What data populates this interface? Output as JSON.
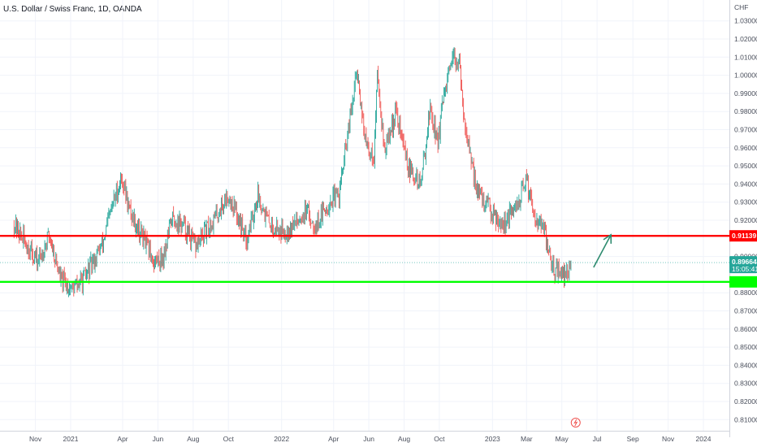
{
  "header": {
    "title": "U.S. Dollar / Swiss Franc, 1D, OANDA"
  },
  "colors": {
    "background": "#ffffff",
    "grid": "#f0f3fa",
    "axis_text": "#4a4f5c",
    "up_candle": "#26a69a",
    "down_candle": "#ef5350",
    "resistance_line": "#ff0000",
    "support_line": "#00ff00",
    "current_price_tag": "#26a69a",
    "arrow": "#2e8b6f"
  },
  "chart_data": {
    "type": "candlestick",
    "title": "U.S. Dollar / Swiss Franc, 1D, OANDA",
    "currency_unit": "CHF",
    "ylim": [
      0.805,
      1.035
    ],
    "y_ticks": [
      "1.03000",
      "1.02000",
      "1.01000",
      "1.00000",
      "0.99000",
      "0.98000",
      "0.97000",
      "0.96000",
      "0.95000",
      "0.94000",
      "0.93000",
      "0.92000",
      "0.90000",
      "0.88000",
      "0.87000",
      "0.86000",
      "0.85000",
      "0.84000",
      "0.83000",
      "0.82000",
      "0.81000"
    ],
    "x_ticks": [
      "Nov",
      "2021",
      "Apr",
      "Jun",
      "Aug",
      "Oct",
      "2022",
      "Apr",
      "Jun",
      "Aug",
      "Oct",
      "2023",
      "Mar",
      "May",
      "Jul",
      "Sep",
      "Nov",
      "2024"
    ],
    "x_tick_dates": [
      "2020-11-01",
      "2021-01-01",
      "2021-04-01",
      "2021-06-01",
      "2021-08-01",
      "2021-10-01",
      "2022-01-01",
      "2022-04-01",
      "2022-06-01",
      "2022-08-01",
      "2022-10-01",
      "2023-01-01",
      "2023-03-01",
      "2023-05-01",
      "2023-07-01",
      "2023-09-01",
      "2023-11-01",
      "2024-01-01"
    ],
    "price_path": [
      [
        "2020-09-25",
        0.918
      ],
      [
        "2020-10-10",
        0.91
      ],
      [
        "2020-10-22",
        0.904
      ],
      [
        "2020-11-06",
        0.897
      ],
      [
        "2020-11-25",
        0.912
      ],
      [
        "2020-12-15",
        0.887
      ],
      [
        "2021-01-04",
        0.882
      ],
      [
        "2021-01-25",
        0.888
      ],
      [
        "2021-02-25",
        0.907
      ],
      [
        "2021-03-15",
        0.929
      ],
      [
        "2021-03-31",
        0.944
      ],
      [
        "2021-04-12",
        0.926
      ],
      [
        "2021-05-05",
        0.911
      ],
      [
        "2021-05-25",
        0.897
      ],
      [
        "2021-06-10",
        0.9
      ],
      [
        "2021-06-25",
        0.921
      ],
      [
        "2021-07-15",
        0.917
      ],
      [
        "2021-08-05",
        0.905
      ],
      [
        "2021-09-01",
        0.918
      ],
      [
        "2021-10-01",
        0.934
      ],
      [
        "2021-10-20",
        0.92
      ],
      [
        "2021-11-01",
        0.91
      ],
      [
        "2021-11-22",
        0.934
      ],
      [
        "2021-12-10",
        0.918
      ],
      [
        "2022-01-01",
        0.914
      ],
      [
        "2022-01-20",
        0.917
      ],
      [
        "2022-02-10",
        0.925
      ],
      [
        "2022-03-01",
        0.918
      ],
      [
        "2022-03-25",
        0.93
      ],
      [
        "2022-04-10",
        0.934
      ],
      [
        "2022-04-27",
        0.97
      ],
      [
        "2022-05-12",
        1.003
      ],
      [
        "2022-05-27",
        0.961
      ],
      [
        "2022-06-10",
        0.955
      ],
      [
        "2022-06-16",
        1.002
      ],
      [
        "2022-06-28",
        0.958
      ],
      [
        "2022-07-18",
        0.98
      ],
      [
        "2022-08-10",
        0.947
      ],
      [
        "2022-08-30",
        0.94
      ],
      [
        "2022-09-15",
        0.982
      ],
      [
        "2022-09-28",
        0.963
      ],
      [
        "2022-10-10",
        0.99
      ],
      [
        "2022-10-24",
        1.007
      ],
      [
        "2022-11-03",
        1.01
      ],
      [
        "2022-11-10",
        0.985
      ],
      [
        "2022-11-25",
        0.95
      ],
      [
        "2022-12-10",
        0.933
      ],
      [
        "2023-01-01",
        0.925
      ],
      [
        "2023-01-20",
        0.918
      ],
      [
        "2023-02-10",
        0.926
      ],
      [
        "2023-03-01",
        0.942
      ],
      [
        "2023-03-15",
        0.924
      ],
      [
        "2023-03-31",
        0.914
      ],
      [
        "2023-04-15",
        0.894
      ],
      [
        "2023-04-30",
        0.892
      ],
      [
        "2023-05-05",
        0.888
      ],
      [
        "2023-05-17",
        0.897
      ]
    ],
    "horizontal_levels": [
      {
        "value": 0.91139,
        "label": "0.91139",
        "color": "#ff0000"
      },
      {
        "value": 0.886,
        "label": "",
        "color": "#00ff00"
      }
    ],
    "current_price": {
      "value": 0.89664,
      "label": "0.89664",
      "countdown": "15:05:41"
    },
    "projection_arrow": {
      "from": {
        "date": "2023-06-25",
        "value": 0.894
      },
      "to": {
        "date": "2023-07-25",
        "value": 0.912
      }
    },
    "grid": true,
    "legend": "none"
  }
}
